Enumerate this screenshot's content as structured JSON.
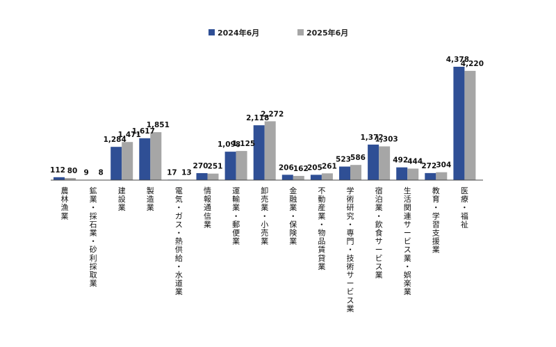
{
  "chart_data": {
    "type": "bar",
    "categories": [
      "農林漁業",
      "鉱業・採石業・砂利採取業",
      "建設業",
      "製造業",
      "電気・ガス・熱供給・水道業",
      "情報通信業",
      "運輸業・郵便業",
      "卸売業・小売業",
      "金融業・保険業",
      "不動産業・物品賃貸業",
      "学術研究・専門・技術サービス業",
      "宿泊業・飲食サービス業",
      "生活関連サービス業・娯楽業",
      "教育・学習支援業",
      "医療・福祉"
    ],
    "series": [
      {
        "name": "2024年6月",
        "color": "#2f4f95",
        "values": [
          112,
          9,
          1284,
          1617,
          17,
          270,
          1098,
          2118,
          206,
          205,
          523,
          1372,
          492,
          272,
          4378
        ],
        "labels": [
          "112",
          "9",
          "1,284",
          "1,617",
          "17",
          "270",
          "1,098",
          "2,118",
          "206",
          "205",
          "523",
          "1,372",
          "492",
          "272",
          "4,378"
        ]
      },
      {
        "name": "2025年6月",
        "color": "#a6a6a6",
        "values": [
          80,
          8,
          1471,
          1851,
          13,
          251,
          1125,
          2272,
          162,
          261,
          586,
          1303,
          444,
          304,
          4220
        ],
        "labels": [
          "80",
          "8",
          "1,471",
          "1,851",
          "13",
          "251",
          "1,125",
          "2,272",
          "162",
          "261",
          "586",
          "1,303",
          "444",
          "304",
          "4,220"
        ]
      }
    ],
    "title": "",
    "xlabel": "",
    "ylabel": "",
    "ylim": [
      0,
      4378
    ],
    "grid": false,
    "legend_position": "top-center"
  }
}
